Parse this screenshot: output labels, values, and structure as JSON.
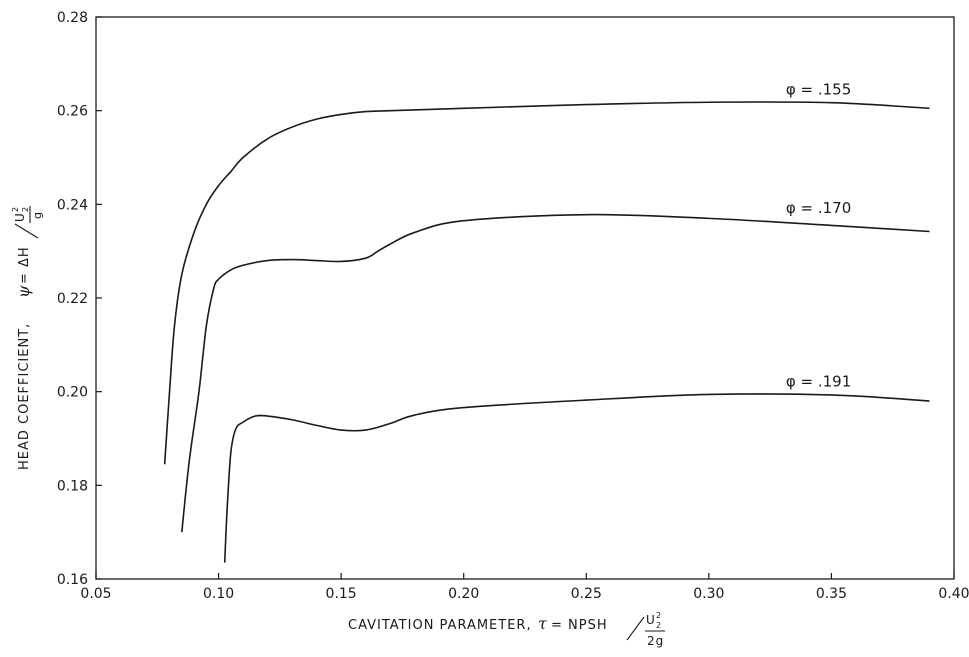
{
  "chart_data": {
    "type": "line",
    "xlabel": "CAVITATION PARAMETER, τ = NPSH / (U₂² / 2g)",
    "xlabel_parts": {
      "prefix": "CAVITATION PARAMETER,",
      "symbol": "τ",
      "eq": "= NPSH",
      "num": "U",
      "num_sub": "2",
      "num_sup": "2",
      "den": "2g"
    },
    "ylabel": "HEAD COEFFICIENT, ψ = ΔH / (U₂² / g)",
    "ylabel_parts": {
      "prefix": "HEAD COEFFICIENT,",
      "symbol": "ψ",
      "eq": "= ΔH",
      "num": "U",
      "num_sub": "2",
      "num_sup": "2",
      "den": "g"
    },
    "xlim": [
      0.05,
      0.4
    ],
    "ylim": [
      0.16,
      0.28
    ],
    "xticks": [
      "0.05",
      "0.10",
      "0.15",
      "0.20",
      "0.25",
      "0.30",
      "0.35",
      "0.40"
    ],
    "yticks": [
      "0.16",
      "0.18",
      "0.20",
      "0.22",
      "0.24",
      "0.26",
      "0.28"
    ],
    "grid": false,
    "series": [
      {
        "name": "φ = .155",
        "x": [
          0.078,
          0.08,
          0.082,
          0.085,
          0.09,
          0.095,
          0.1,
          0.105,
          0.11,
          0.12,
          0.13,
          0.14,
          0.15,
          0.16,
          0.17,
          0.2,
          0.25,
          0.3,
          0.35,
          0.39
        ],
        "y": [
          0.1845,
          0.2,
          0.214,
          0.225,
          0.234,
          0.24,
          0.244,
          0.247,
          0.25,
          0.254,
          0.2565,
          0.2582,
          0.2592,
          0.2598,
          0.26,
          0.2605,
          0.2613,
          0.2618,
          0.2617,
          0.2605
        ]
      },
      {
        "name": "φ = .170",
        "x": [
          0.085,
          0.088,
          0.092,
          0.095,
          0.098,
          0.1,
          0.105,
          0.11,
          0.12,
          0.13,
          0.14,
          0.15,
          0.16,
          0.165,
          0.17,
          0.18,
          0.2,
          0.25,
          0.3,
          0.35,
          0.39
        ],
        "y": [
          0.17,
          0.185,
          0.2,
          0.214,
          0.222,
          0.224,
          0.226,
          0.227,
          0.228,
          0.2282,
          0.228,
          0.2278,
          0.2285,
          0.23,
          0.2315,
          0.234,
          0.2365,
          0.2378,
          0.237,
          0.2355,
          0.2342
        ]
      },
      {
        "name": "φ = .191",
        "x": [
          0.1025,
          0.1035,
          0.105,
          0.107,
          0.11,
          0.115,
          0.12,
          0.13,
          0.14,
          0.15,
          0.16,
          0.17,
          0.18,
          0.2,
          0.25,
          0.3,
          0.35,
          0.39
        ],
        "y": [
          0.1635,
          0.175,
          0.187,
          0.192,
          0.1935,
          0.1948,
          0.1948,
          0.194,
          0.1928,
          0.1918,
          0.1918,
          0.1932,
          0.195,
          0.1966,
          0.1982,
          0.1994,
          0.1993,
          0.198
        ]
      }
    ]
  }
}
